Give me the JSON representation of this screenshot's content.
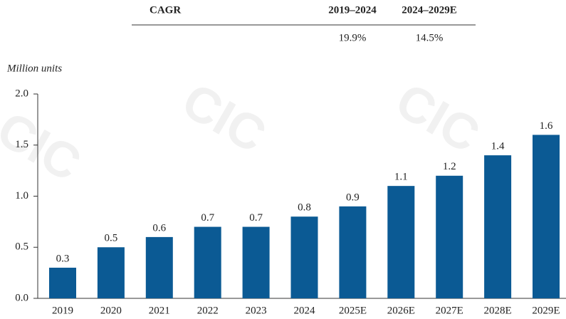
{
  "cagr_table": {
    "title": "CAGR",
    "columns": [
      "2019–2024",
      "2024–2029E"
    ],
    "values": [
      "19.9%",
      "14.5%"
    ]
  },
  "watermark": "CIC",
  "chart_data": {
    "type": "bar",
    "y_axis_label": "Million units",
    "categories": [
      "2019",
      "2020",
      "2021",
      "2022",
      "2023",
      "2024",
      "2025E",
      "2026E",
      "2027E",
      "2028E",
      "2029E"
    ],
    "values": [
      0.3,
      0.5,
      0.6,
      0.7,
      0.7,
      0.8,
      0.9,
      1.1,
      1.2,
      1.4,
      1.6
    ],
    "color": "#0b5a94",
    "ylim": [
      0,
      2
    ],
    "yticks": [
      {
        "value": 0,
        "label": "0.0"
      },
      {
        "value": 0.5,
        "label": "0.5"
      },
      {
        "value": 1,
        "label": "1.0"
      },
      {
        "value": 1.5,
        "label": "1.5"
      },
      {
        "value": 2,
        "label": "2.0"
      }
    ]
  }
}
